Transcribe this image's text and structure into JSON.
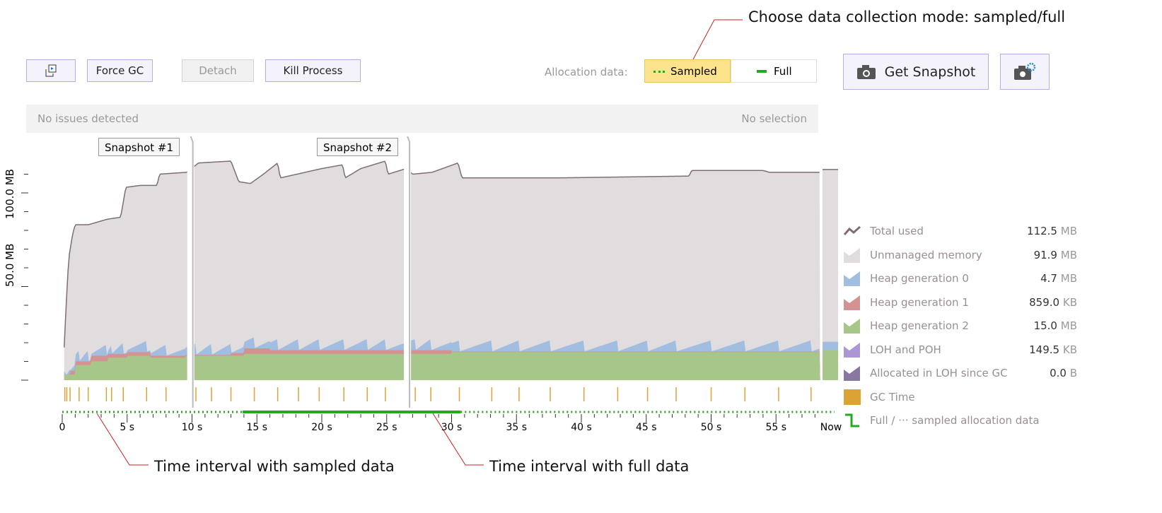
{
  "annotations": {
    "mode": "Choose data collection mode: sampled/full",
    "sampled": "Time interval with sampled data",
    "full": "Time interval with full data"
  },
  "toolbar": {
    "restore_icon": "detach-window-icon",
    "force_gc": "Force GC",
    "detach": "Detach",
    "kill": "Kill Process",
    "alloc_label": "Allocation data:",
    "sampled": "Sampled",
    "full": "Full",
    "get_snapshot": "Get Snapshot",
    "snapshot_settings_icon": "camera-gear-icon",
    "get_snapshot_icon": "camera-icon"
  },
  "status": {
    "issues": "No issues detected",
    "selection": "No selection"
  },
  "snapshots": [
    {
      "label": "Snapshot #1",
      "t": 9.9
    },
    {
      "label": "Snapshot #2",
      "t": 26.6
    }
  ],
  "legend": [
    {
      "label": "Total used",
      "value": "112.5",
      "unit": "MB",
      "color": "#7d6f72"
    },
    {
      "label": "Unmanaged memory",
      "value": "91.9",
      "unit": "MB",
      "color": "#e1dcdd"
    },
    {
      "label": "Heap generation 0",
      "value": "4.7",
      "unit": "MB",
      "color": "#a1bde0"
    },
    {
      "label": "Heap generation 1",
      "value": "859.0",
      "unit": "KB",
      "color": "#d49393"
    },
    {
      "label": "Heap generation 2",
      "value": "15.0",
      "unit": "MB",
      "color": "#a7c78a"
    },
    {
      "label": "LOH and POH",
      "value": "149.5",
      "unit": "KB",
      "color": "#ab96d6"
    },
    {
      "label": "Allocated in LOH since GC",
      "value": "0.0",
      "unit": "B",
      "color": "#86789f"
    },
    {
      "label": "GC Time",
      "value": "",
      "unit": "",
      "color": "#dba333"
    },
    {
      "label": "Full / ··· sampled allocation data",
      "value": "",
      "unit": "",
      "color": "#22aa22"
    }
  ],
  "chart_data": {
    "type": "area",
    "xlabel": "",
    "ylabel": "",
    "x_ticks": [
      "0",
      "5 s",
      "10 s",
      "15 s",
      "20 s",
      "25 s",
      "30 s",
      "35 s",
      "40 s",
      "45 s",
      "50 s",
      "55 s",
      "Now"
    ],
    "y_ticks": [
      "50.0 MB",
      "100.0 MB"
    ],
    "ylim": [
      0,
      115
    ],
    "total_used": [
      [
        0.1,
        10
      ],
      [
        0.3,
        40
      ],
      [
        0.5,
        65
      ],
      [
        0.8,
        78
      ],
      [
        1,
        83
      ],
      [
        2,
        83
      ],
      [
        3.5,
        86
      ],
      [
        4.5,
        87
      ],
      [
        4.9,
        103
      ],
      [
        6,
        104
      ],
      [
        7.3,
        104
      ],
      [
        7.5,
        110
      ],
      [
        9.6,
        111
      ],
      [
        10.5,
        116
      ],
      [
        13,
        117
      ],
      [
        13.6,
        106
      ],
      [
        14.5,
        105
      ],
      [
        15.5,
        110
      ],
      [
        16.6,
        116
      ],
      [
        16.8,
        108
      ],
      [
        20,
        113
      ],
      [
        21.6,
        115
      ],
      [
        21.8,
        108
      ],
      [
        23,
        113
      ],
      [
        24.9,
        117
      ],
      [
        25.1,
        110
      ],
      [
        26.5,
        113
      ],
      [
        27,
        110
      ],
      [
        28.5,
        111
      ],
      [
        30.5,
        116
      ],
      [
        30.8,
        108
      ],
      [
        38,
        108
      ],
      [
        48.3,
        109
      ],
      [
        48.5,
        112
      ],
      [
        54,
        112
      ],
      [
        54.5,
        111
      ],
      [
        58.4,
        111
      ]
    ],
    "gen2": [
      [
        0.2,
        3
      ],
      [
        1,
        8
      ],
      [
        2.2,
        10
      ],
      [
        3.5,
        12
      ],
      [
        5,
        13
      ],
      [
        6.8,
        12
      ],
      [
        9.5,
        13
      ],
      [
        13,
        13
      ],
      [
        14,
        14
      ],
      [
        30,
        15
      ],
      [
        58.4,
        15.5
      ]
    ],
    "gen1": [
      [
        0.2,
        3
      ],
      [
        0.6,
        5
      ],
      [
        1,
        10
      ],
      [
        2.2,
        13
      ],
      [
        3.5,
        14
      ],
      [
        5,
        15
      ],
      [
        6.8,
        13
      ],
      [
        9.5,
        13.5
      ],
      [
        13,
        14.5
      ],
      [
        14,
        17
      ],
      [
        16,
        16
      ],
      [
        30,
        15.3
      ],
      [
        58.4,
        16
      ]
    ],
    "gen0_peak": 6,
    "gc_times": [
      0.2,
      0.35,
      0.6,
      1.3,
      2,
      3.4,
      3.8,
      4.7,
      6.5,
      8,
      10.3,
      11.5,
      13,
      14.8,
      16.6,
      18.2,
      19.8,
      21.7,
      23.5,
      24.9,
      27.2,
      28.4,
      30.6,
      33.1,
      35.2,
      37.6,
      40.2,
      42.8,
      45.1,
      47.3,
      50,
      52.6,
      55.2,
      57.7
    ],
    "full_intervals": [
      [
        13.9,
        30.7
      ]
    ]
  }
}
